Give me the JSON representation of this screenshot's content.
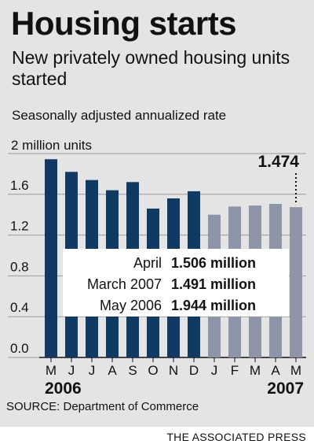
{
  "title": "Housing starts",
  "subtitle": "New privately owned housing units started",
  "note": "Seasonally adjusted annualized rate",
  "source": "SOURCE: Department of Commerce",
  "credit": "THE ASSOCIATED PRESS",
  "colors": {
    "panel": "#e4e4e4",
    "bar_2006": "#0f3a63",
    "bar_2007": "#8f95a8",
    "text": "#111111"
  },
  "chart_data": {
    "type": "bar",
    "categories": [
      "M",
      "J",
      "J",
      "A",
      "S",
      "O",
      "N",
      "D",
      "J",
      "F",
      "M",
      "A",
      "M"
    ],
    "values": [
      1.944,
      1.82,
      1.74,
      1.64,
      1.72,
      1.46,
      1.56,
      1.63,
      1.4,
      1.48,
      1.49,
      1.506,
      1.474
    ],
    "period": [
      "2006",
      "2006",
      "2006",
      "2006",
      "2006",
      "2006",
      "2006",
      "2006",
      "2007",
      "2007",
      "2007",
      "2007",
      "2007"
    ],
    "year_labels": [
      "2006",
      "2007"
    ],
    "ylim": [
      0,
      2
    ],
    "yticks": [
      "2 million units",
      "1.6",
      "1.2",
      "0.8",
      "0.4",
      "0.0"
    ],
    "ytick_values": [
      2,
      1.6,
      1.2,
      0.8,
      0.4,
      0
    ],
    "grid": true,
    "callout": "1.474",
    "annotations": [
      {
        "label": "April",
        "value": "1.506 million"
      },
      {
        "label": "March 2007",
        "value": "1.491 million"
      },
      {
        "label": "May 2006",
        "value": "1.944 million"
      }
    ]
  }
}
